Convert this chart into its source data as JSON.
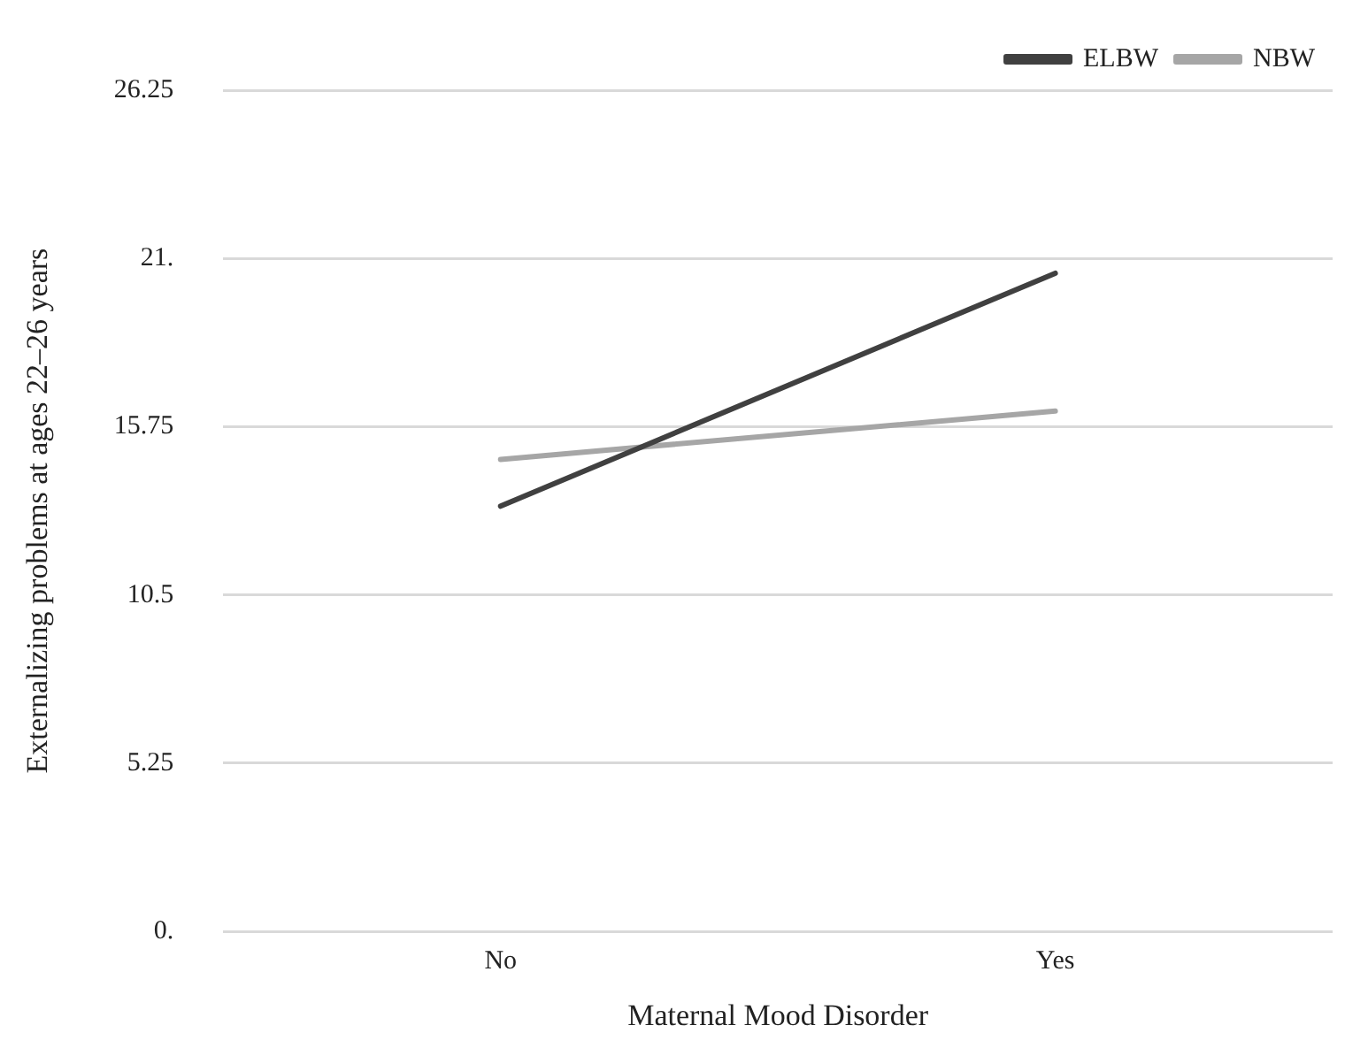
{
  "chart_data": {
    "type": "line",
    "xlabel": "Maternal Mood Disorder",
    "ylabel": "Externalizing problems at ages 22–26 years",
    "categories": [
      "No",
      "Yes"
    ],
    "series": [
      {
        "name": "ELBW",
        "color": "#404040",
        "values": [
          13.27,
          20.54
        ]
      },
      {
        "name": "NBW",
        "color": "#a6a6a6",
        "values": [
          14.73,
          16.24
        ]
      }
    ],
    "ylim": [
      0,
      26.25
    ],
    "yticks": [
      {
        "value": 0,
        "label": "0."
      },
      5.25,
      10.5,
      15.75,
      {
        "value": 21,
        "label": "21."
      },
      26.25
    ],
    "grid": "y",
    "legend": "top right",
    "marker": "none",
    "line_style": "solid"
  }
}
